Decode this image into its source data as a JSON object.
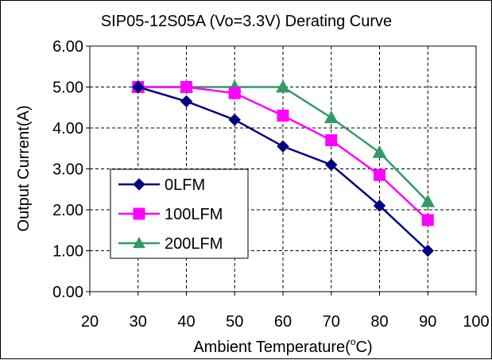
{
  "chart_data": {
    "type": "line",
    "title": "SIP05-12S05A (Vo=3.3V) Derating Curve",
    "xlabel": "Ambient Temperature(",
    "xlabel_unit_sup": "o",
    "xlabel_unit_tail": "C)",
    "ylabel": "Output Current(A)",
    "x_ticks": [
      "20",
      "30",
      "40",
      "50",
      "60",
      "70",
      "80",
      "90",
      "100"
    ],
    "y_ticks": [
      "0.00",
      "1.00",
      "2.00",
      "3.00",
      "4.00",
      "5.00",
      "6.00"
    ],
    "xlim": [
      20,
      100
    ],
    "ylim": [
      0,
      6
    ],
    "grid": true,
    "legend_position": "left-middle",
    "x": [
      30,
      40,
      50,
      60,
      70,
      80,
      90
    ],
    "series": [
      {
        "name": "0LFM",
        "color": "#000080",
        "marker": "diamond",
        "values": [
          5.0,
          4.65,
          4.2,
          3.55,
          3.1,
          2.1,
          1.0
        ]
      },
      {
        "name": "100LFM",
        "color": "#ff00ff",
        "marker": "square",
        "values": [
          5.0,
          5.0,
          4.85,
          4.3,
          3.7,
          2.85,
          1.75
        ]
      },
      {
        "name": "200LFM",
        "color": "#339966",
        "marker": "triangle",
        "values": [
          5.0,
          5.0,
          5.0,
          5.0,
          4.25,
          3.4,
          2.2
        ]
      }
    ]
  }
}
